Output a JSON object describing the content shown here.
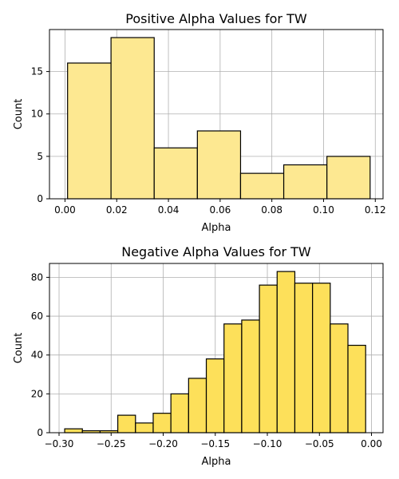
{
  "chart_data": [
    {
      "type": "bar",
      "title": "Positive Alpha Values for TW",
      "xlabel": "Alpha",
      "ylabel": "Count",
      "xlim": [
        -0.006,
        0.123
      ],
      "ylim": [
        0,
        19.95
      ],
      "xticks": [
        0.0,
        0.02,
        0.04,
        0.06,
        0.08,
        0.1,
        0.12
      ],
      "xtick_labels": [
        "0.00",
        "0.02",
        "0.04",
        "0.06",
        "0.08",
        "0.10",
        "0.12"
      ],
      "yticks": [
        0,
        5,
        10,
        15
      ],
      "ytick_labels": [
        "0",
        "5",
        "10",
        "15"
      ],
      "grid": true,
      "bar_color": "#fde891",
      "edge_color": "#000000",
      "bins": [
        {
          "x0": 0.001,
          "x1": 0.0178,
          "count": 16
        },
        {
          "x0": 0.0178,
          "x1": 0.0345,
          "count": 19
        },
        {
          "x0": 0.0345,
          "x1": 0.0512,
          "count": 6
        },
        {
          "x0": 0.0512,
          "x1": 0.0679,
          "count": 8
        },
        {
          "x0": 0.0679,
          "x1": 0.0846,
          "count": 3
        },
        {
          "x0": 0.0846,
          "x1": 0.1013,
          "count": 4
        },
        {
          "x0": 0.1013,
          "x1": 0.118,
          "count": 5
        }
      ]
    },
    {
      "type": "bar",
      "title": "Negative Alpha Values for TW",
      "xlabel": "Alpha",
      "ylabel": "Count",
      "xlim": [
        -0.3092,
        0.0111
      ],
      "ylim": [
        0,
        87.15
      ],
      "xticks": [
        -0.3,
        -0.25,
        -0.2,
        -0.15,
        -0.1,
        -0.05,
        0.0
      ],
      "xtick_labels": [
        "−0.30",
        "−0.25",
        "−0.20",
        "−0.15",
        "−0.10",
        "−0.05",
        "0.00"
      ],
      "yticks": [
        0,
        20,
        40,
        60,
        80
      ],
      "ytick_labels": [
        "0",
        "20",
        "40",
        "60",
        "80"
      ],
      "grid": true,
      "bar_color": "#fde05a",
      "edge_color": "#000000",
      "bins": [
        {
          "x0": -0.2946,
          "x1": -0.2776,
          "count": 2
        },
        {
          "x0": -0.2776,
          "x1": -0.2606,
          "count": 1
        },
        {
          "x0": -0.2606,
          "x1": -0.2436,
          "count": 1
        },
        {
          "x0": -0.2436,
          "x1": -0.2266,
          "count": 9
        },
        {
          "x0": -0.2266,
          "x1": -0.2096,
          "count": 5
        },
        {
          "x0": -0.2096,
          "x1": -0.1926,
          "count": 10
        },
        {
          "x0": -0.1926,
          "x1": -0.1756,
          "count": 20
        },
        {
          "x0": -0.1756,
          "x1": -0.1586,
          "count": 28
        },
        {
          "x0": -0.1586,
          "x1": -0.1416,
          "count": 38
        },
        {
          "x0": -0.1416,
          "x1": -0.1246,
          "count": 56
        },
        {
          "x0": -0.1246,
          "x1": -0.1076,
          "count": 58
        },
        {
          "x0": -0.1076,
          "x1": -0.0906,
          "count": 76
        },
        {
          "x0": -0.0906,
          "x1": -0.0736,
          "count": 83
        },
        {
          "x0": -0.0736,
          "x1": -0.0566,
          "count": 77
        },
        {
          "x0": -0.0566,
          "x1": -0.0396,
          "count": 77
        },
        {
          "x0": -0.0396,
          "x1": -0.0226,
          "count": 56
        },
        {
          "x0": -0.0226,
          "x1": -0.0056,
          "count": 45
        }
      ]
    }
  ]
}
